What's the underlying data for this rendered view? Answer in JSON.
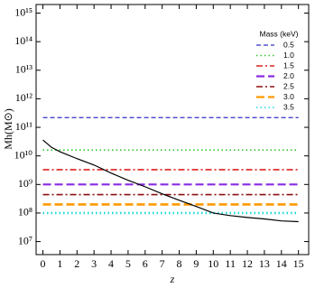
{
  "chart_data": {
    "type": "line",
    "x_label": "z",
    "y_label": "Mh(M⊙)",
    "legend_title": "Mass (keV)",
    "legend": "upper right",
    "log_y": true,
    "xlim": [
      -0.4,
      15.6
    ],
    "ylim": [
      3500000,
      2000000000000000
    ],
    "xticks": [
      0,
      1,
      2,
      3,
      4,
      5,
      6,
      7,
      8,
      9,
      10,
      11,
      12,
      13,
      14,
      15
    ],
    "yticks": [
      {
        "value": 10000000,
        "label": "10⁷"
      },
      {
        "value": 100000000,
        "label": "10⁸"
      },
      {
        "value": 1000000000,
        "label": "10⁹"
      },
      {
        "value": 10000000000,
        "label": "10¹⁰"
      },
      {
        "value": 100000000000,
        "label": "10¹¹"
      },
      {
        "value": 1000000000000,
        "label": "10¹²"
      },
      {
        "value": 10000000000000,
        "label": "10¹³"
      },
      {
        "value": 100000000000000,
        "label": "10¹⁴"
      },
      {
        "value": 1000000000000000,
        "label": "10¹⁵"
      }
    ],
    "series": [
      {
        "name": "0.5",
        "color": "#3030c8",
        "dash": "dashed",
        "x": [
          0,
          15
        ],
        "values": [
          220000000000,
          220000000000
        ]
      },
      {
        "name": "1.0",
        "color": "#30c830",
        "dash": "dotted",
        "x": [
          0,
          15
        ],
        "values": [
          16000000000,
          16000000000
        ]
      },
      {
        "name": "1.5",
        "color": "#dd2020",
        "dash": "dashdot",
        "x": [
          0,
          15
        ],
        "values": [
          3300000000,
          3300000000
        ]
      },
      {
        "name": "2.0",
        "color": "#8a2be2",
        "dash": "longdash",
        "x": [
          0,
          15
        ],
        "values": [
          1000000000,
          1000000000
        ]
      },
      {
        "name": "2.5",
        "color": "#8b1010",
        "dash": "dashdot",
        "x": [
          0,
          15
        ],
        "values": [
          440000000,
          440000000
        ]
      },
      {
        "name": "3.0",
        "color": "#ff9900",
        "dash": "longdash",
        "x": [
          0,
          15
        ],
        "values": [
          200000000,
          200000000
        ]
      },
      {
        "name": "3.5",
        "color": "#20d8d8",
        "dash": "dotted",
        "x": [
          0,
          15
        ],
        "values": [
          100000000,
          100000000
        ]
      }
    ],
    "curve": {
      "color": "#000000",
      "x": [
        0,
        0.5,
        1,
        2,
        3,
        4,
        5,
        6,
        7,
        8,
        9,
        10,
        11,
        12,
        13,
        14,
        15
      ],
      "values": [
        36000000000,
        20000000000,
        14000000000,
        8000000000,
        4800000000,
        2500000000,
        1400000000,
        830000000,
        470000000,
        280000000,
        170000000,
        100000000,
        81000000,
        70000000,
        62000000,
        53000000,
        50000000
      ]
    }
  }
}
